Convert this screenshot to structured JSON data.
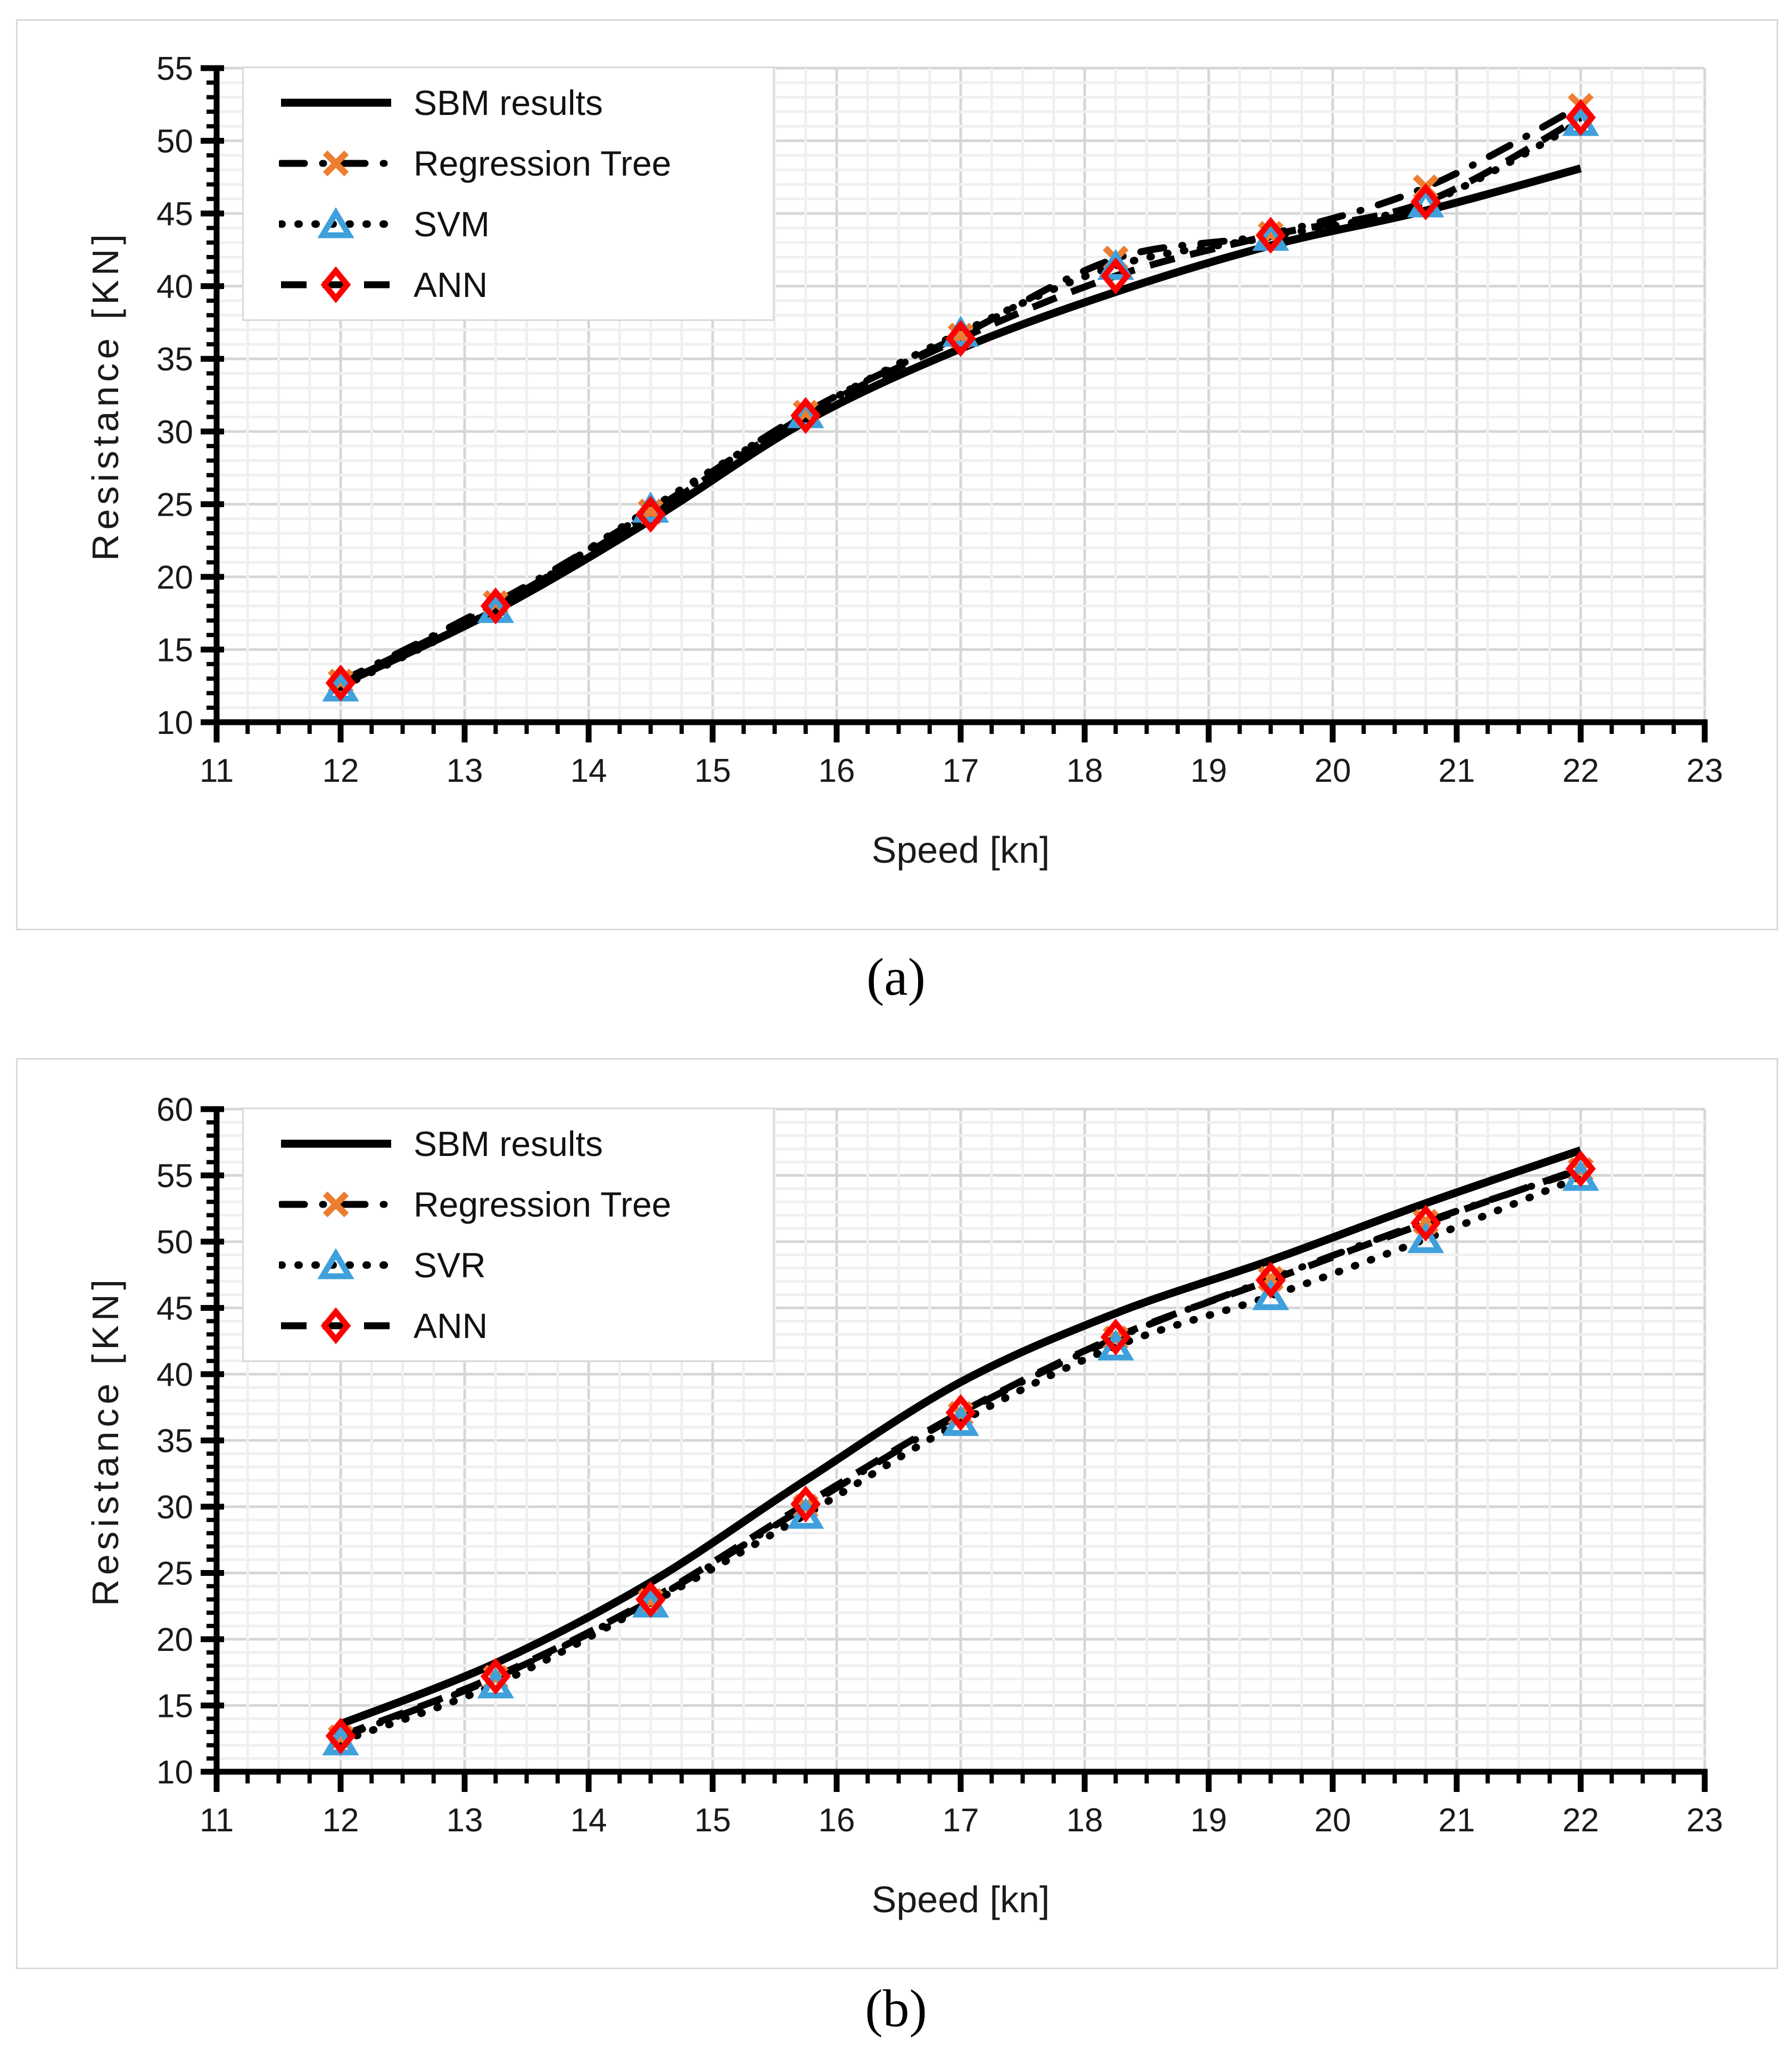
{
  "figure": {
    "background": "#ffffff",
    "panel_border_color": "#d9d9d9",
    "grid_major_color": "#d6d6d6",
    "grid_minor_color": "#f0f0f0",
    "axis_color": "#000000",
    "tick_label_color": "#1a1a1a"
  },
  "chart_data": [
    {
      "type": "line",
      "caption": "(a)",
      "xlabel": "Speed [kn]",
      "ylabel": "Resistance [KN]",
      "xlim": [
        11,
        23
      ],
      "ylim": [
        10,
        55
      ],
      "x_ticks": [
        11,
        12,
        13,
        14,
        15,
        16,
        17,
        18,
        19,
        20,
        21,
        22,
        23
      ],
      "y_ticks": [
        10,
        15,
        20,
        25,
        30,
        35,
        40,
        45,
        50,
        55
      ],
      "x_minor_step": 0.25,
      "y_minor_step": 1,
      "grid": true,
      "legend_position": "top-left",
      "x": [
        12,
        13.25,
        14.5,
        15.75,
        17,
        18.25,
        19.5,
        20.75,
        22
      ],
      "series": [
        {
          "name": "SBM results",
          "style": "solid",
          "marker": "none",
          "line_color": "#000000",
          "marker_color": "#000000",
          "values": [
            12.6,
            17.7,
            23.9,
            30.7,
            35.7,
            39.6,
            42.8,
            45.2,
            48.1
          ]
        },
        {
          "name": "Regression Tree",
          "style": "dash-dot",
          "marker": "x",
          "line_color": "#000000",
          "marker_color": "#ED7D31",
          "values": [
            12.8,
            18.2,
            24.5,
            31.3,
            36.6,
            41.9,
            43.6,
            46.8,
            52.4
          ]
        },
        {
          "name": "SVM",
          "style": "dotted",
          "marker": "triangle",
          "line_color": "#000000",
          "marker_color": "#3FA0DC",
          "values": [
            12.4,
            17.8,
            24.7,
            31.2,
            36.8,
            41.4,
            43.4,
            45.7,
            51.3
          ]
        },
        {
          "name": "ANN",
          "style": "dashed",
          "marker": "diamond",
          "line_color": "#000000",
          "marker_color": "#FF0000",
          "values": [
            12.7,
            18.0,
            24.3,
            31.1,
            36.4,
            40.7,
            43.5,
            45.8,
            51.6
          ]
        }
      ]
    },
    {
      "type": "line",
      "caption": "(b)",
      "xlabel": "Speed [kn]",
      "ylabel": "Resistance [KN]",
      "xlim": [
        11,
        23
      ],
      "ylim": [
        10,
        60
      ],
      "x_ticks": [
        11,
        12,
        13,
        14,
        15,
        16,
        17,
        18,
        19,
        20,
        21,
        22,
        23
      ],
      "y_ticks": [
        10,
        15,
        20,
        25,
        30,
        35,
        40,
        45,
        50,
        55,
        60
      ],
      "x_minor_step": 0.25,
      "y_minor_step": 1,
      "grid": true,
      "legend_position": "top-left",
      "x": [
        12,
        13.25,
        14.5,
        15.75,
        17,
        18.25,
        19.5,
        20.75,
        22
      ],
      "series": [
        {
          "name": "SBM results",
          "style": "solid",
          "marker": "none",
          "line_color": "#000000",
          "marker_color": "#000000",
          "values": [
            13.6,
            18.2,
            24.3,
            32.0,
            39.4,
            44.6,
            48.6,
            52.9,
            56.9
          ]
        },
        {
          "name": "Regression Tree",
          "style": "dash-dot",
          "marker": "x",
          "line_color": "#000000",
          "marker_color": "#ED7D31",
          "values": [
            12.6,
            17.1,
            22.9,
            30.0,
            37.0,
            42.7,
            47.2,
            51.5,
            55.4
          ]
        },
        {
          "name": "SVR",
          "style": "dotted",
          "marker": "triangle",
          "line_color": "#000000",
          "marker_color": "#3FA0DC",
          "values": [
            12.3,
            16.6,
            22.7,
            29.4,
            36.4,
            42.1,
            45.9,
            50.2,
            54.9
          ]
        },
        {
          "name": "ANN",
          "style": "dashed",
          "marker": "diamond",
          "line_color": "#000000",
          "marker_color": "#FF0000",
          "values": [
            12.7,
            17.2,
            23.0,
            30.2,
            37.1,
            42.8,
            47.1,
            51.4,
            55.5
          ]
        }
      ]
    }
  ]
}
